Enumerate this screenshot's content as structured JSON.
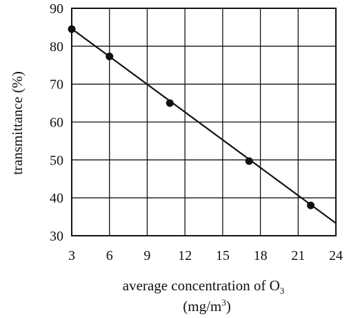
{
  "chart_data": {
    "type": "scatter",
    "title": "",
    "xlabel": {
      "prefix": "average concentration of O",
      "subscript": "3"
    },
    "xunit": {
      "open": "(mg/m",
      "superscript": "3",
      "close": ")"
    },
    "ylabel": "transmittance (%)",
    "xlim": [
      3,
      24
    ],
    "ylim": [
      30,
      90
    ],
    "xticks": [
      "3",
      "6",
      "9",
      "12",
      "15",
      "18",
      "21",
      "24"
    ],
    "yticks": [
      "30",
      "40",
      "50",
      "60",
      "70",
      "80",
      "90"
    ],
    "grid": true,
    "legend": "none",
    "series": [
      {
        "points": [
          {
            "x": 3.0,
            "y": 84.5
          },
          {
            "x": 6.0,
            "y": 77.3
          },
          {
            "x": 10.8,
            "y": 65.0
          },
          {
            "x": 17.1,
            "y": 49.7
          },
          {
            "x": 22.0,
            "y": 38.0
          }
        ]
      }
    ],
    "fit_line": {
      "x": [
        3,
        24
      ],
      "y": [
        84.6,
        33.3
      ]
    },
    "colors": {
      "line": "#111111",
      "grid": "#111111",
      "marker": "#111111"
    }
  }
}
